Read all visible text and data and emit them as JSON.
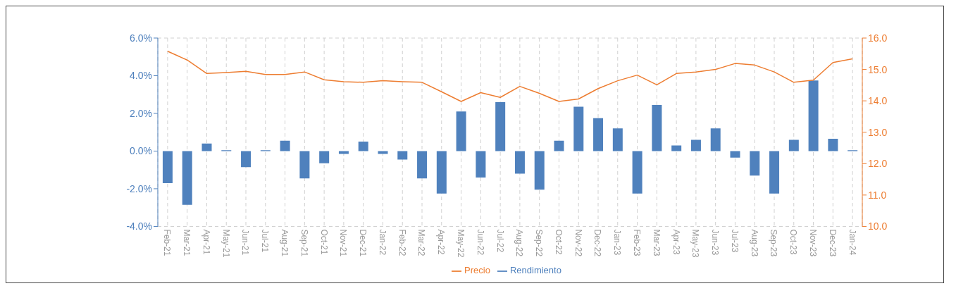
{
  "chart_data": {
    "type": "bar",
    "categories": [
      "Feb-21",
      "Mar-21",
      "Apr-21",
      "May-21",
      "Jun-21",
      "Jul-21",
      "Aug-21",
      "Sep-21",
      "Oct-21",
      "Nov-21",
      "Dec-21",
      "Jan-22",
      "Feb-22",
      "Mar-22",
      "Apr-22",
      "May-22",
      "Jun-22",
      "Jul-22",
      "Aug-22",
      "Sep-22",
      "Oct-22",
      "Nov-22",
      "Dec-22",
      "Jan-23",
      "Feb-23",
      "Mar-23",
      "Apr-23",
      "May-23",
      "Jun-23",
      "Jul-23",
      "Aug-23",
      "Sep-23",
      "Oct-23",
      "Nov-23",
      "Dec-23",
      "Jan-24"
    ],
    "series": [
      {
        "name": "Rendimiento",
        "color": "#4f81bd",
        "values": [
          -1.7,
          -2.85,
          0.4,
          0.05,
          -0.85,
          0.05,
          0.55,
          -1.45,
          -0.65,
          -0.15,
          0.5,
          -0.15,
          -0.45,
          -1.45,
          -2.25,
          2.1,
          -1.4,
          2.6,
          -1.2,
          -2.05,
          0.55,
          2.35,
          1.75,
          1.2,
          -2.25,
          2.45,
          0.3,
          0.6,
          1.2,
          -0.35,
          -1.3,
          -2.25,
          0.6,
          3.75,
          0.65,
          0.05
        ]
      },
      {
        "name": "Precio",
        "type": "line",
        "axis": "y2",
        "color": "#ed7d31",
        "values": [
          15.58,
          15.3,
          14.87,
          14.9,
          14.94,
          14.84,
          14.84,
          14.92,
          14.67,
          14.61,
          14.59,
          14.64,
          14.61,
          14.59,
          14.29,
          13.98,
          14.26,
          14.11,
          14.46,
          14.24,
          13.98,
          14.06,
          14.39,
          14.64,
          14.82,
          14.51,
          14.87,
          14.92,
          15.0,
          15.19,
          15.14,
          14.92,
          14.59,
          14.66,
          15.22,
          15.34
        ]
      }
    ],
    "ylim": [
      -4,
      6
    ],
    "yticks": [
      {
        "value": -4,
        "label": "-4.0%"
      },
      {
        "value": -2,
        "label": "-2.0%"
      },
      {
        "value": 0,
        "label": "0.0%"
      },
      {
        "value": 2,
        "label": "2.0%"
      },
      {
        "value": 4,
        "label": "4.0%"
      },
      {
        "value": 6,
        "label": "6.0%"
      }
    ],
    "y2lim": [
      10,
      16
    ],
    "y2ticks": [
      {
        "value": 10,
        "label": "10.0"
      },
      {
        "value": 11,
        "label": "11.0"
      },
      {
        "value": 12,
        "label": "12.0"
      },
      {
        "value": 13,
        "label": "13.0"
      },
      {
        "value": 14,
        "label": "14.0"
      },
      {
        "value": 15,
        "label": "15.0"
      },
      {
        "value": 16,
        "label": "16.0"
      }
    ],
    "grid": true,
    "legend": "bottom",
    "marker": "none",
    "line_style": "solid"
  }
}
